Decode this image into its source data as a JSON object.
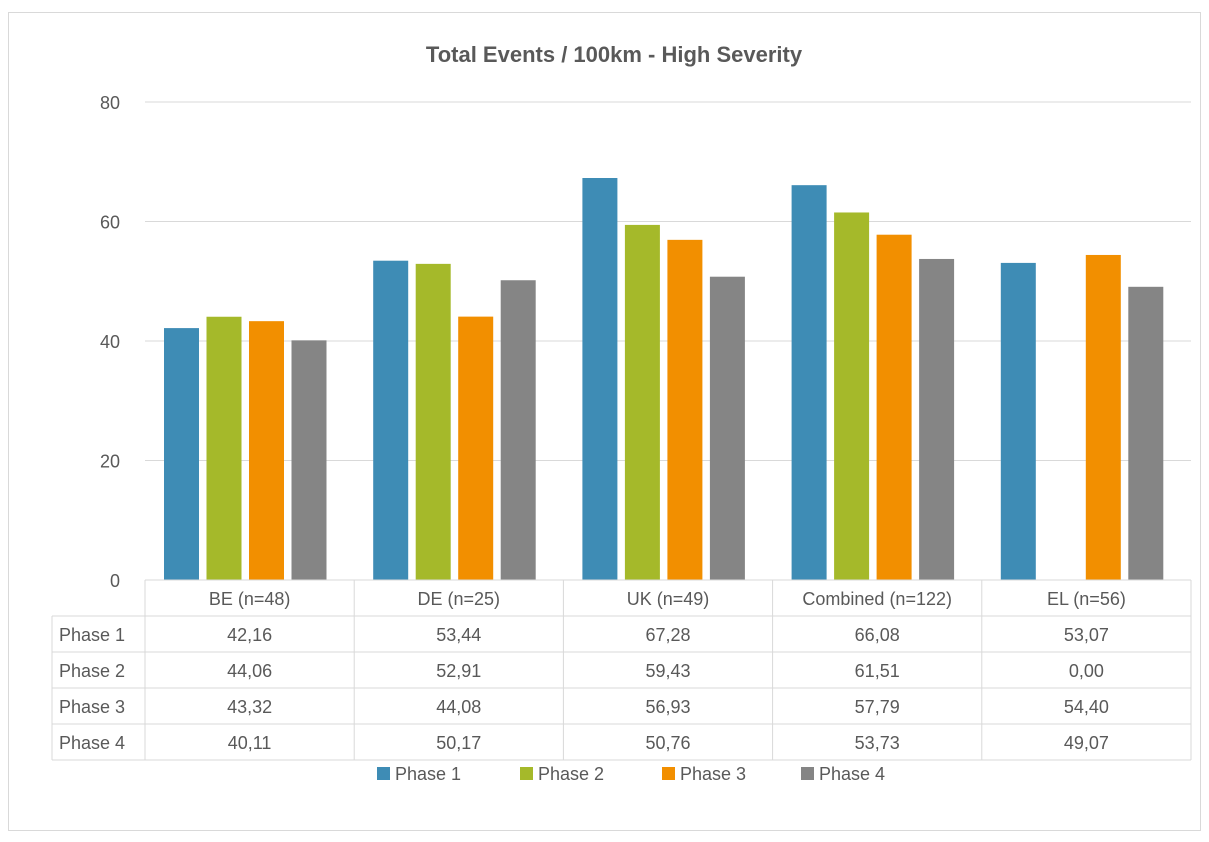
{
  "chart_data": {
    "type": "bar",
    "title": "Total Events / 100km - High Severity",
    "categories": [
      "BE (n=48)",
      "DE (n=25)",
      "UK (n=49)",
      "Combined (n=122)",
      "EL (n=56)"
    ],
    "series": [
      {
        "name": "Phase 1",
        "color": "#3E8CB5",
        "values": [
          42.16,
          53.44,
          67.28,
          66.08,
          53.07
        ],
        "labels": [
          "42,16",
          "53,44",
          "67,28",
          "66,08",
          "53,07"
        ]
      },
      {
        "name": "Phase 2",
        "color": "#A5B92A",
        "values": [
          44.06,
          52.91,
          59.43,
          61.51,
          0.0
        ],
        "labels": [
          "44,06",
          "52,91",
          "59,43",
          "61,51",
          "0,00"
        ]
      },
      {
        "name": "Phase 3",
        "color": "#F28F00",
        "values": [
          43.32,
          44.08,
          56.93,
          57.79,
          54.4
        ],
        "labels": [
          "43,32",
          "44,08",
          "56,93",
          "57,79",
          "54,40"
        ]
      },
      {
        "name": "Phase 4",
        "color": "#858585",
        "values": [
          40.11,
          50.17,
          50.76,
          53.73,
          49.07
        ],
        "labels": [
          "40,11",
          "50,17",
          "50,76",
          "53,73",
          "49,07"
        ]
      }
    ],
    "ylim": [
      0,
      80
    ],
    "yticks": [
      0,
      20,
      40,
      60,
      80
    ],
    "grid": true,
    "legend": "bottom",
    "data_table": true
  }
}
